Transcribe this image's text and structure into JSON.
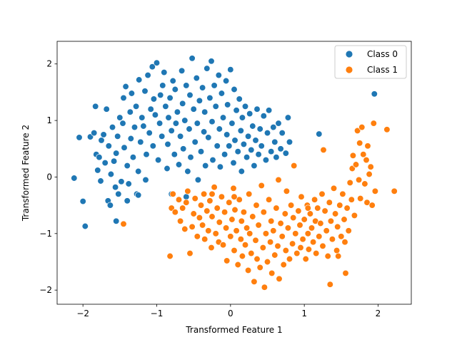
{
  "chart_data": {
    "type": "scatter",
    "xlabel": "Transformed Feature 1",
    "ylabel": "Transformed Feature 2",
    "xlim": [
      -2.35,
      2.45
    ],
    "ylim": [
      -2.25,
      2.4
    ],
    "xticks": [
      -2,
      -1,
      0,
      1,
      2
    ],
    "yticks": [
      -2,
      -1,
      0,
      1,
      2
    ],
    "grid": false,
    "legend_position": "top-right",
    "series": [
      {
        "name": "Class 0",
        "color": "#1f77b4",
        "points": [
          [
            -2.12,
            -0.02
          ],
          [
            -2.05,
            0.7
          ],
          [
            -2.0,
            -0.43
          ],
          [
            -1.97,
            -0.87
          ],
          [
            -1.9,
            0.71
          ],
          [
            -1.85,
            0.78
          ],
          [
            -1.83,
            1.25
          ],
          [
            -1.82,
            0.4
          ],
          [
            -1.8,
            0.12
          ],
          [
            -1.78,
            0.35
          ],
          [
            -1.76,
            -0.07
          ],
          [
            -1.75,
            0.65
          ],
          [
            -1.72,
            0.75
          ],
          [
            -1.7,
            0.25
          ],
          [
            -1.68,
            1.2
          ],
          [
            -1.66,
            -0.42
          ],
          [
            -1.65,
            0.55
          ],
          [
            -1.63,
            -0.5
          ],
          [
            -1.62,
            0.05
          ],
          [
            -1.6,
            0.88
          ],
          [
            -1.58,
            0.28
          ],
          [
            -1.56,
            -0.18
          ],
          [
            -1.55,
            0.42
          ],
          [
            -1.53,
            0.72
          ],
          [
            -1.52,
            -0.3
          ],
          [
            -1.5,
            1.05
          ],
          [
            -1.48,
            -0.08
          ],
          [
            -1.46,
            0.95
          ],
          [
            -1.45,
            1.4
          ],
          [
            -1.44,
            0.52
          ],
          [
            -1.42,
            1.6
          ],
          [
            -1.4,
            0.2
          ],
          [
            -1.38,
            -0.12
          ],
          [
            -1.36,
            1.15
          ],
          [
            -1.35,
            0.68
          ],
          [
            -1.34,
            1.48
          ],
          [
            -1.32,
            0.35
          ],
          [
            -1.3,
            0.88
          ],
          [
            -1.28,
            1.25
          ],
          [
            -1.27,
            -0.3
          ],
          [
            -1.25,
            0.1
          ],
          [
            -1.24,
            1.72
          ],
          [
            -1.22,
            0.62
          ],
          [
            -1.2,
            1.05
          ],
          [
            -1.18,
            0.9
          ],
          [
            -1.16,
            1.52
          ],
          [
            -1.15,
            -0.05
          ],
          [
            -1.14,
            0.4
          ],
          [
            -1.12,
            1.8
          ],
          [
            -1.1,
            0.78
          ],
          [
            -1.08,
            1.2
          ],
          [
            -1.06,
            1.95
          ],
          [
            -1.05,
            0.55
          ],
          [
            -1.04,
            1.38
          ],
          [
            -1.02,
            1.1
          ],
          [
            -1.0,
            2.02
          ],
          [
            -0.98,
            0.3
          ],
          [
            -0.96,
            0.95
          ],
          [
            -0.95,
            1.45
          ],
          [
            -0.93,
            0.72
          ],
          [
            -0.92,
            1.62
          ],
          [
            -0.9,
            1.85
          ],
          [
            -0.88,
            1.25
          ],
          [
            -0.86,
            0.15
          ],
          [
            -0.85,
            0.58
          ],
          [
            -0.84,
            1.05
          ],
          [
            -0.82,
            1.4
          ],
          [
            -0.8,
            0.82
          ],
          [
            -0.78,
            1.7
          ],
          [
            -0.76,
            0.4
          ],
          [
            -0.75,
            1.55
          ],
          [
            -0.74,
            0.95
          ],
          [
            -0.72,
            1.15
          ],
          [
            -0.7,
            0.22
          ],
          [
            -0.68,
            0.72
          ],
          [
            -0.66,
            1.88
          ],
          [
            -0.65,
            1.3
          ],
          [
            -0.64,
            0.5
          ],
          [
            -0.62,
            1.0
          ],
          [
            -0.6,
            1.62
          ],
          [
            -0.58,
            0.1
          ],
          [
            -0.56,
            0.85
          ],
          [
            -0.55,
            1.45
          ],
          [
            -0.54,
            0.35
          ],
          [
            -0.52,
            2.1
          ],
          [
            -0.5,
            1.2
          ],
          [
            -0.48,
            0.62
          ],
          [
            -0.46,
            1.75
          ],
          [
            -0.45,
            0.95
          ],
          [
            -0.44,
            -0.05
          ],
          [
            -0.42,
            1.35
          ],
          [
            -0.4,
            0.45
          ],
          [
            -0.38,
            1.58
          ],
          [
            -0.36,
            0.8
          ],
          [
            -0.35,
            1.15
          ],
          [
            -0.34,
            0.2
          ],
          [
            -0.32,
            1.92
          ],
          [
            -0.3,
            0.7
          ],
          [
            -0.28,
            1.4
          ],
          [
            -0.26,
            2.05
          ],
          [
            -0.25,
            0.98
          ],
          [
            -0.24,
            0.3
          ],
          [
            -0.22,
            1.62
          ],
          [
            -0.2,
            1.25
          ],
          [
            -0.18,
            0.55
          ],
          [
            -0.16,
            1.8
          ],
          [
            -0.15,
            0.85
          ],
          [
            -0.14,
            0.18
          ],
          [
            -0.12,
            1.48
          ],
          [
            -0.1,
            1.05
          ],
          [
            -0.08,
            0.4
          ],
          [
            -0.06,
            1.7
          ],
          [
            -0.05,
            0.75
          ],
          [
            -0.04,
            1.28
          ],
          [
            -0.02,
            0.55
          ],
          [
            0.0,
            1.9
          ],
          [
            0.02,
            0.95
          ],
          [
            0.04,
            0.25
          ],
          [
            0.05,
            1.55
          ],
          [
            0.06,
            0.65
          ],
          [
            0.08,
            1.18
          ],
          [
            0.1,
            0.45
          ],
          [
            0.12,
            1.38
          ],
          [
            0.14,
            0.82
          ],
          [
            0.15,
            0.1
          ],
          [
            0.16,
            1.05
          ],
          [
            0.18,
            0.58
          ],
          [
            0.2,
            1.25
          ],
          [
            0.22,
            0.35
          ],
          [
            0.24,
            0.72
          ],
          [
            0.26,
            1.12
          ],
          [
            0.28,
            0.48
          ],
          [
            0.3,
            0.9
          ],
          [
            0.32,
            0.2
          ],
          [
            0.34,
            0.65
          ],
          [
            0.36,
            1.2
          ],
          [
            0.38,
            0.4
          ],
          [
            0.4,
            0.85
          ],
          [
            0.42,
            0.55
          ],
          [
            0.45,
            1.08
          ],
          [
            0.48,
            0.3
          ],
          [
            0.5,
            0.78
          ],
          [
            0.52,
            1.18
          ],
          [
            0.55,
            0.45
          ],
          [
            0.58,
            0.88
          ],
          [
            0.6,
            0.62
          ],
          [
            0.62,
            0.35
          ],
          [
            0.65,
            0.95
          ],
          [
            0.68,
            0.5
          ],
          [
            0.7,
            0.78
          ],
          [
            0.75,
            0.42
          ],
          [
            0.78,
            1.05
          ],
          [
            0.8,
            0.62
          ],
          [
            1.2,
            0.76
          ],
          [
            1.95,
            1.47
          ],
          [
            -0.6,
            -0.35
          ],
          [
            -0.8,
            -0.3
          ],
          [
            -1.55,
            -0.78
          ],
          [
            -1.4,
            -0.42
          ],
          [
            -1.25,
            -0.32
          ]
        ]
      },
      {
        "name": "Class 1",
        "color": "#ff7f0e",
        "points": [
          [
            -1.45,
            -0.83
          ],
          [
            -0.82,
            -1.4
          ],
          [
            -0.8,
            -0.55
          ],
          [
            -0.78,
            -0.3
          ],
          [
            -0.75,
            -0.62
          ],
          [
            -0.7,
            -0.4
          ],
          [
            -0.68,
            -0.78
          ],
          [
            -0.65,
            -0.55
          ],
          [
            -0.62,
            -0.92
          ],
          [
            -0.6,
            -0.45
          ],
          [
            -0.58,
            -0.25
          ],
          [
            -0.55,
            -1.35
          ],
          [
            -0.52,
            -0.88
          ],
          [
            -0.5,
            -0.65
          ],
          [
            -0.48,
            -0.38
          ],
          [
            -0.45,
            -1.05
          ],
          [
            -0.42,
            -0.72
          ],
          [
            -0.4,
            -0.5
          ],
          [
            -0.38,
            -0.85
          ],
          [
            -0.36,
            -0.3
          ],
          [
            -0.35,
            -1.1
          ],
          [
            -0.32,
            -0.6
          ],
          [
            -0.3,
            -0.95
          ],
          [
            -0.28,
            -0.42
          ],
          [
            -0.26,
            -1.25
          ],
          [
            -0.25,
            -0.7
          ],
          [
            -0.22,
            -0.18
          ],
          [
            -0.2,
            -1.0
          ],
          [
            -0.18,
            -0.55
          ],
          [
            -0.16,
            -1.15
          ],
          [
            -0.15,
            -0.8
          ],
          [
            -0.12,
            -0.35
          ],
          [
            -0.1,
            -1.2
          ],
          [
            -0.08,
            -0.62
          ],
          [
            -0.06,
            -0.9
          ],
          [
            -0.05,
            -1.48
          ],
          [
            -0.02,
            -0.45
          ],
          [
            0.0,
            -1.05
          ],
          [
            0.02,
            -0.75
          ],
          [
            0.04,
            -0.2
          ],
          [
            0.05,
            -1.3
          ],
          [
            0.06,
            -0.58
          ],
          [
            0.08,
            -0.95
          ],
          [
            0.1,
            -1.55
          ],
          [
            0.12,
            -0.4
          ],
          [
            0.14,
            -1.1
          ],
          [
            0.15,
            -0.78
          ],
          [
            0.16,
            -1.4
          ],
          [
            0.18,
            -0.62
          ],
          [
            0.2,
            -1.2
          ],
          [
            0.22,
            -0.9
          ],
          [
            0.24,
            -1.65
          ],
          [
            0.25,
            -0.3
          ],
          [
            0.26,
            -1.0
          ],
          [
            0.28,
            -1.35
          ],
          [
            0.3,
            -0.7
          ],
          [
            0.32,
            -1.85
          ],
          [
            0.34,
            -1.12
          ],
          [
            0.35,
            -0.5
          ],
          [
            0.36,
            -1.45
          ],
          [
            0.38,
            -0.85
          ],
          [
            0.4,
            -1.6
          ],
          [
            0.42,
            -0.15
          ],
          [
            0.44,
            -1.25
          ],
          [
            0.45,
            -0.62
          ],
          [
            0.46,
            -1.95
          ],
          [
            0.48,
            -1.0
          ],
          [
            0.5,
            -1.5
          ],
          [
            0.52,
            -0.4
          ],
          [
            0.54,
            -1.15
          ],
          [
            0.55,
            -0.78
          ],
          [
            0.56,
            -1.7
          ],
          [
            0.58,
            -0.95
          ],
          [
            0.6,
            -1.38
          ],
          [
            0.62,
            -0.55
          ],
          [
            0.64,
            -1.22
          ],
          [
            0.65,
            -0.05
          ],
          [
            0.66,
            -1.8
          ],
          [
            0.68,
            -0.82
          ],
          [
            0.7,
            -1.05
          ],
          [
            0.72,
            -1.55
          ],
          [
            0.74,
            -0.65
          ],
          [
            0.75,
            -1.3
          ],
          [
            0.76,
            -0.25
          ],
          [
            0.78,
            -0.9
          ],
          [
            0.8,
            -1.45
          ],
          [
            0.82,
            -0.5
          ],
          [
            0.84,
            -1.18
          ],
          [
            0.85,
            -0.72
          ],
          [
            0.86,
            0.2
          ],
          [
            0.88,
            -1.0
          ],
          [
            0.9,
            -1.35
          ],
          [
            0.92,
            -0.6
          ],
          [
            0.94,
            -0.85
          ],
          [
            0.95,
            -1.25
          ],
          [
            0.96,
            -0.35
          ],
          [
            0.98,
            -1.1
          ],
          [
            1.0,
            -0.75
          ],
          [
            1.02,
            -1.45
          ],
          [
            1.04,
            -0.5
          ],
          [
            1.05,
            -1.0
          ],
          [
            1.06,
            -1.28
          ],
          [
            1.08,
            -0.65
          ],
          [
            1.1,
            -0.9
          ],
          [
            1.12,
            -1.15
          ],
          [
            1.14,
            -0.4
          ],
          [
            1.15,
            -0.78
          ],
          [
            1.16,
            -1.35
          ],
          [
            1.18,
            -0.55
          ],
          [
            1.2,
            -1.05
          ],
          [
            1.22,
            -0.82
          ],
          [
            1.24,
            -0.3
          ],
          [
            1.25,
            -1.22
          ],
          [
            1.26,
            0.48
          ],
          [
            1.28,
            -0.6
          ],
          [
            1.3,
            -0.95
          ],
          [
            1.32,
            -1.4
          ],
          [
            1.34,
            -0.45
          ],
          [
            1.35,
            -1.9
          ],
          [
            1.36,
            -0.78
          ],
          [
            1.38,
            -1.1
          ],
          [
            1.4,
            -0.2
          ],
          [
            1.42,
            -0.65
          ],
          [
            1.44,
            -1.3
          ],
          [
            1.45,
            -0.88
          ],
          [
            1.46,
            -1.4
          ],
          [
            1.48,
            -0.5
          ],
          [
            1.5,
            -1.05
          ],
          [
            1.52,
            -0.3
          ],
          [
            1.54,
            -0.75
          ],
          [
            1.55,
            -1.15
          ],
          [
            1.56,
            -1.7
          ],
          [
            1.58,
            -0.55
          ],
          [
            1.6,
            -0.95
          ],
          [
            1.62,
            -0.1
          ],
          [
            1.64,
            -0.4
          ],
          [
            1.65,
            0.15
          ],
          [
            1.66,
            0.38
          ],
          [
            1.68,
            -0.68
          ],
          [
            1.7,
            0.22
          ],
          [
            1.72,
            0.82
          ],
          [
            1.74,
            -0.05
          ],
          [
            1.75,
            0.6
          ],
          [
            1.76,
            -0.38
          ],
          [
            1.78,
            0.88
          ],
          [
            1.8,
            0.4
          ],
          [
            1.82,
            -0.12
          ],
          [
            1.84,
            0.3
          ],
          [
            1.85,
            -0.45
          ],
          [
            1.86,
            0.55
          ],
          [
            1.88,
            0.05
          ],
          [
            1.9,
            0.18
          ],
          [
            1.92,
            -0.5
          ],
          [
            1.94,
            0.95
          ],
          [
            1.96,
            -0.25
          ],
          [
            2.12,
            0.84
          ],
          [
            2.22,
            -0.25
          ],
          [
            1.05,
            -0.55
          ],
          [
            0.05,
            -0.35
          ],
          [
            -0.25,
            -0.3
          ]
        ]
      }
    ]
  }
}
